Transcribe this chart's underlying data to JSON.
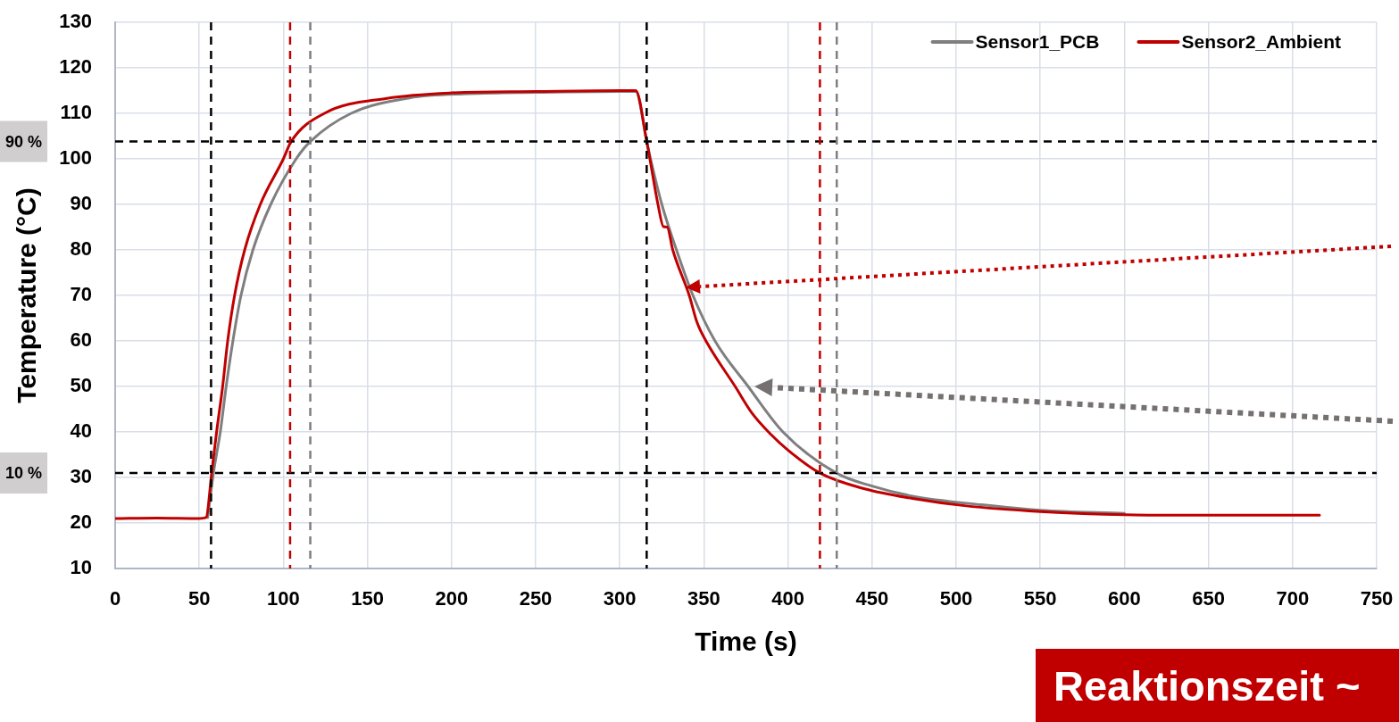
{
  "chart_data": {
    "type": "line",
    "xlabel": "Time (s)",
    "ylabel": "Temperature (°C)",
    "xlim": [
      0,
      750
    ],
    "xticks": [
      0,
      50,
      100,
      150,
      200,
      250,
      300,
      350,
      400,
      450,
      500,
      550,
      600,
      650,
      700,
      750
    ],
    "ylim": [
      10,
      130
    ],
    "yticks": [
      10,
      20,
      30,
      40,
      50,
      60,
      70,
      80,
      90,
      100,
      110,
      120,
      130
    ],
    "grid": true,
    "legend": "top right",
    "marker": "none",
    "line_style": "solid",
    "series": [
      {
        "name": "Sensor1_PCB",
        "color": "#7f7f7f",
        "x": [
          55,
          58.6,
          62.5,
          66,
          70,
          74.8,
          81.9,
          92.5,
          107.6,
          116,
          140.3,
          175,
          210,
          250,
          300,
          309.5,
          316.1,
          318.3,
          325,
          333.7,
          343.5,
          356.6,
          376.3,
          397,
          428.6,
          450,
          474,
          515,
          550,
          600
        ],
        "values": [
          21.2,
          31.4,
          40,
          50,
          60,
          70,
          80,
          90,
          100,
          103.8,
          110,
          113.4,
          114.3,
          114.6,
          114.8,
          114.8,
          103.7,
          100,
          90,
          80,
          70,
          60,
          50,
          40,
          31,
          28.1,
          25.9,
          24,
          22.8,
          22.1
        ]
      },
      {
        "name": "Sensor2_Ambient",
        "color": "#c00000",
        "x": [
          0,
          25,
          50,
          54,
          57.5,
          60.3,
          63.9,
          66.9,
          71,
          77,
          86.3,
          100,
          104.6,
          124.4,
          161.5,
          200,
          250,
          300,
          309.5,
          316.1,
          317.9,
          322.7,
          326,
          328.2,
          331.5,
          341.3,
          346,
          352,
          368.6,
          378.5,
          390,
          400,
          418.8,
          445.6,
          474,
          505,
          550,
          600,
          650,
          716
        ],
        "values": [
          21,
          21.1,
          21,
          21.2,
          31.4,
          40,
          50,
          60,
          70,
          80,
          90,
          100,
          103.8,
          110,
          113.3,
          114.5,
          114.8,
          115,
          115,
          103.7,
          100,
          90,
          85.1,
          85,
          80,
          70,
          64,
          59.5,
          50,
          44.2,
          39.4,
          36,
          31,
          27.5,
          25.4,
          23.8,
          22.5,
          21.8,
          21.7,
          21.7
        ]
      }
    ],
    "ref_lines": [
      {
        "axis": "y",
        "value": 103.8,
        "color": "#000000",
        "line_style": "dashed"
      },
      {
        "axis": "y",
        "value": 31,
        "color": "#000000",
        "line_style": "dashed"
      },
      {
        "axis": "x",
        "value": 57,
        "color": "#000000",
        "line_style": "dashed"
      },
      {
        "axis": "x",
        "value": 104,
        "color": "#c00000",
        "line_style": "dashed"
      },
      {
        "axis": "x",
        "value": 116,
        "color": "#7f7f7f",
        "line_style": "dashed"
      },
      {
        "axis": "x",
        "value": 316,
        "color": "#000000",
        "line_style": "dashed"
      },
      {
        "axis": "x",
        "value": 419,
        "color": "#c00000",
        "line_style": "dashed"
      },
      {
        "axis": "x",
        "value": 429,
        "color": "#7f7f7f",
        "line_style": "dashed"
      }
    ],
    "annotations": [
      "90 %",
      "10 %",
      "Reaktionszeit ~"
    ]
  }
}
